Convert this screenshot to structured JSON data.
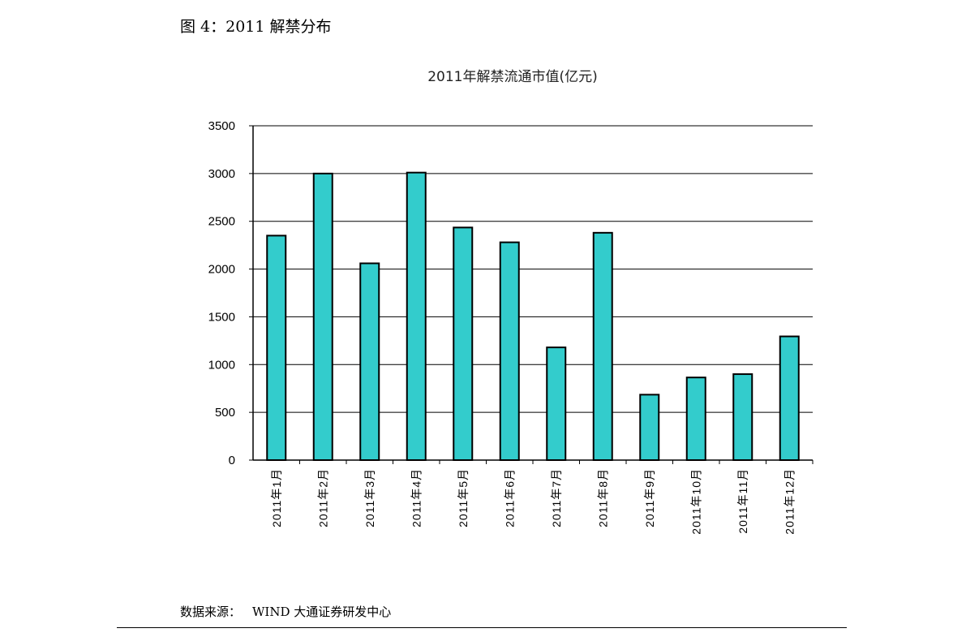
{
  "caption": "图 4：2011 解禁分布",
  "source": {
    "label": "数据来源：",
    "text": "WIND  大通证券研发中心"
  },
  "colors": {
    "bar_fill": "#33CCCC",
    "bar_stroke": "#000000",
    "gridline": "#000000"
  },
  "chart_data": {
    "type": "bar",
    "title": "2011年解禁流通市值(亿元)",
    "categories": [
      "2011年1月",
      "2011年2月",
      "2011年3月",
      "2011年4月",
      "2011年5月",
      "2011年6月",
      "2011年7月",
      "2011年8月",
      "2011年9月",
      "2011年10月",
      "2011年11月",
      "2011年12月"
    ],
    "values": [
      2350,
      3000,
      2060,
      3010,
      2435,
      2280,
      1180,
      2380,
      685,
      865,
      900,
      1295
    ],
    "ylim": [
      0,
      3500
    ],
    "yticks": [
      "0",
      "500",
      "1000",
      "1500",
      "2000",
      "2500",
      "3000",
      "3500"
    ],
    "grid": true,
    "legend": "none",
    "xlabel": "",
    "ylabel": ""
  }
}
